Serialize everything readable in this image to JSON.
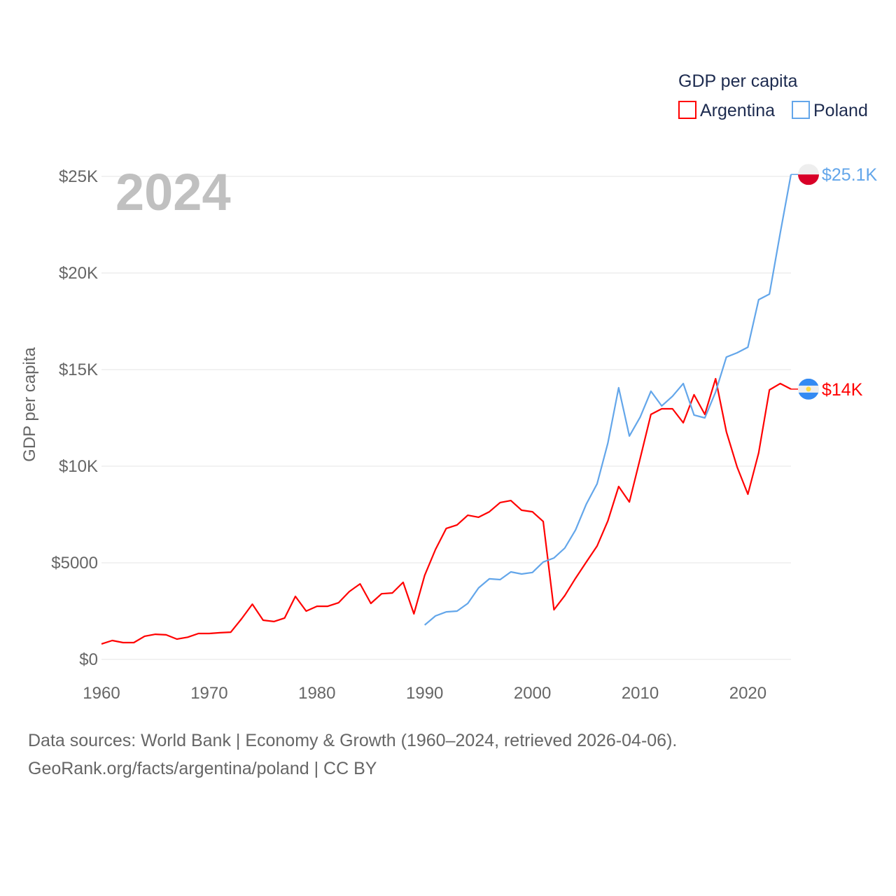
{
  "chart_data": {
    "type": "line",
    "title": "GDP per capita",
    "year_label": "2024",
    "xlabel": "",
    "ylabel": "GDP per capita",
    "xlim": [
      1960,
      2024
    ],
    "ylim": [
      0,
      25000
    ],
    "xticks": [
      1960,
      1970,
      1980,
      1990,
      2000,
      2010,
      2020
    ],
    "xtick_labels": [
      "1960",
      "1970",
      "1980",
      "1990",
      "2000",
      "2010",
      "2020"
    ],
    "yticks": [
      0,
      5000,
      10000,
      15000,
      20000,
      25000
    ],
    "ytick_labels": [
      "$0",
      "$5000",
      "$10K",
      "$15K",
      "$20K",
      "$25K"
    ],
    "grid": true,
    "legend_position": "top-right",
    "series": [
      {
        "name": "Argentina",
        "color": "#ff0000",
        "end_label": "$14K",
        "flag": "argentina-flag",
        "start_year": 1960,
        "values": [
          800,
          980,
          870,
          870,
          1200,
          1300,
          1270,
          1050,
          1150,
          1340,
          1340,
          1380,
          1410,
          2100,
          2860,
          2030,
          1960,
          2140,
          3260,
          2500,
          2750,
          2750,
          2930,
          3510,
          3910,
          2900,
          3400,
          3440,
          3990,
          2360,
          4350,
          5690,
          6780,
          6960,
          7460,
          7360,
          7640,
          8120,
          8220,
          7720,
          7640,
          7140,
          2570,
          3300,
          4200,
          5040,
          5870,
          7170,
          8950,
          8150,
          10400,
          12680,
          12970,
          12970,
          12250,
          13700,
          12680,
          14530,
          11780,
          9960,
          8550,
          10690,
          13950,
          14280,
          13990
        ]
      },
      {
        "name": "Poland",
        "color": "#63a6ea",
        "end_label": "$25.1K",
        "flag": "poland-flag",
        "start_year": 1990,
        "values": [
          1780,
          2250,
          2460,
          2500,
          2900,
          3700,
          4170,
          4130,
          4530,
          4420,
          4500,
          5040,
          5250,
          5760,
          6700,
          8040,
          9090,
          11200,
          14060,
          11560,
          12540,
          13880,
          13120,
          13620,
          14280,
          12650,
          12500,
          13840,
          15650,
          15870,
          16160,
          18620,
          18910,
          22060,
          25100
        ]
      }
    ]
  },
  "source": {
    "line1": "Data sources: World Bank | Economy & Growth (1960–2024, retrieved 2026-04-06).",
    "line2": "GeoRank.org/facts/argentina/poland | CC BY"
  }
}
